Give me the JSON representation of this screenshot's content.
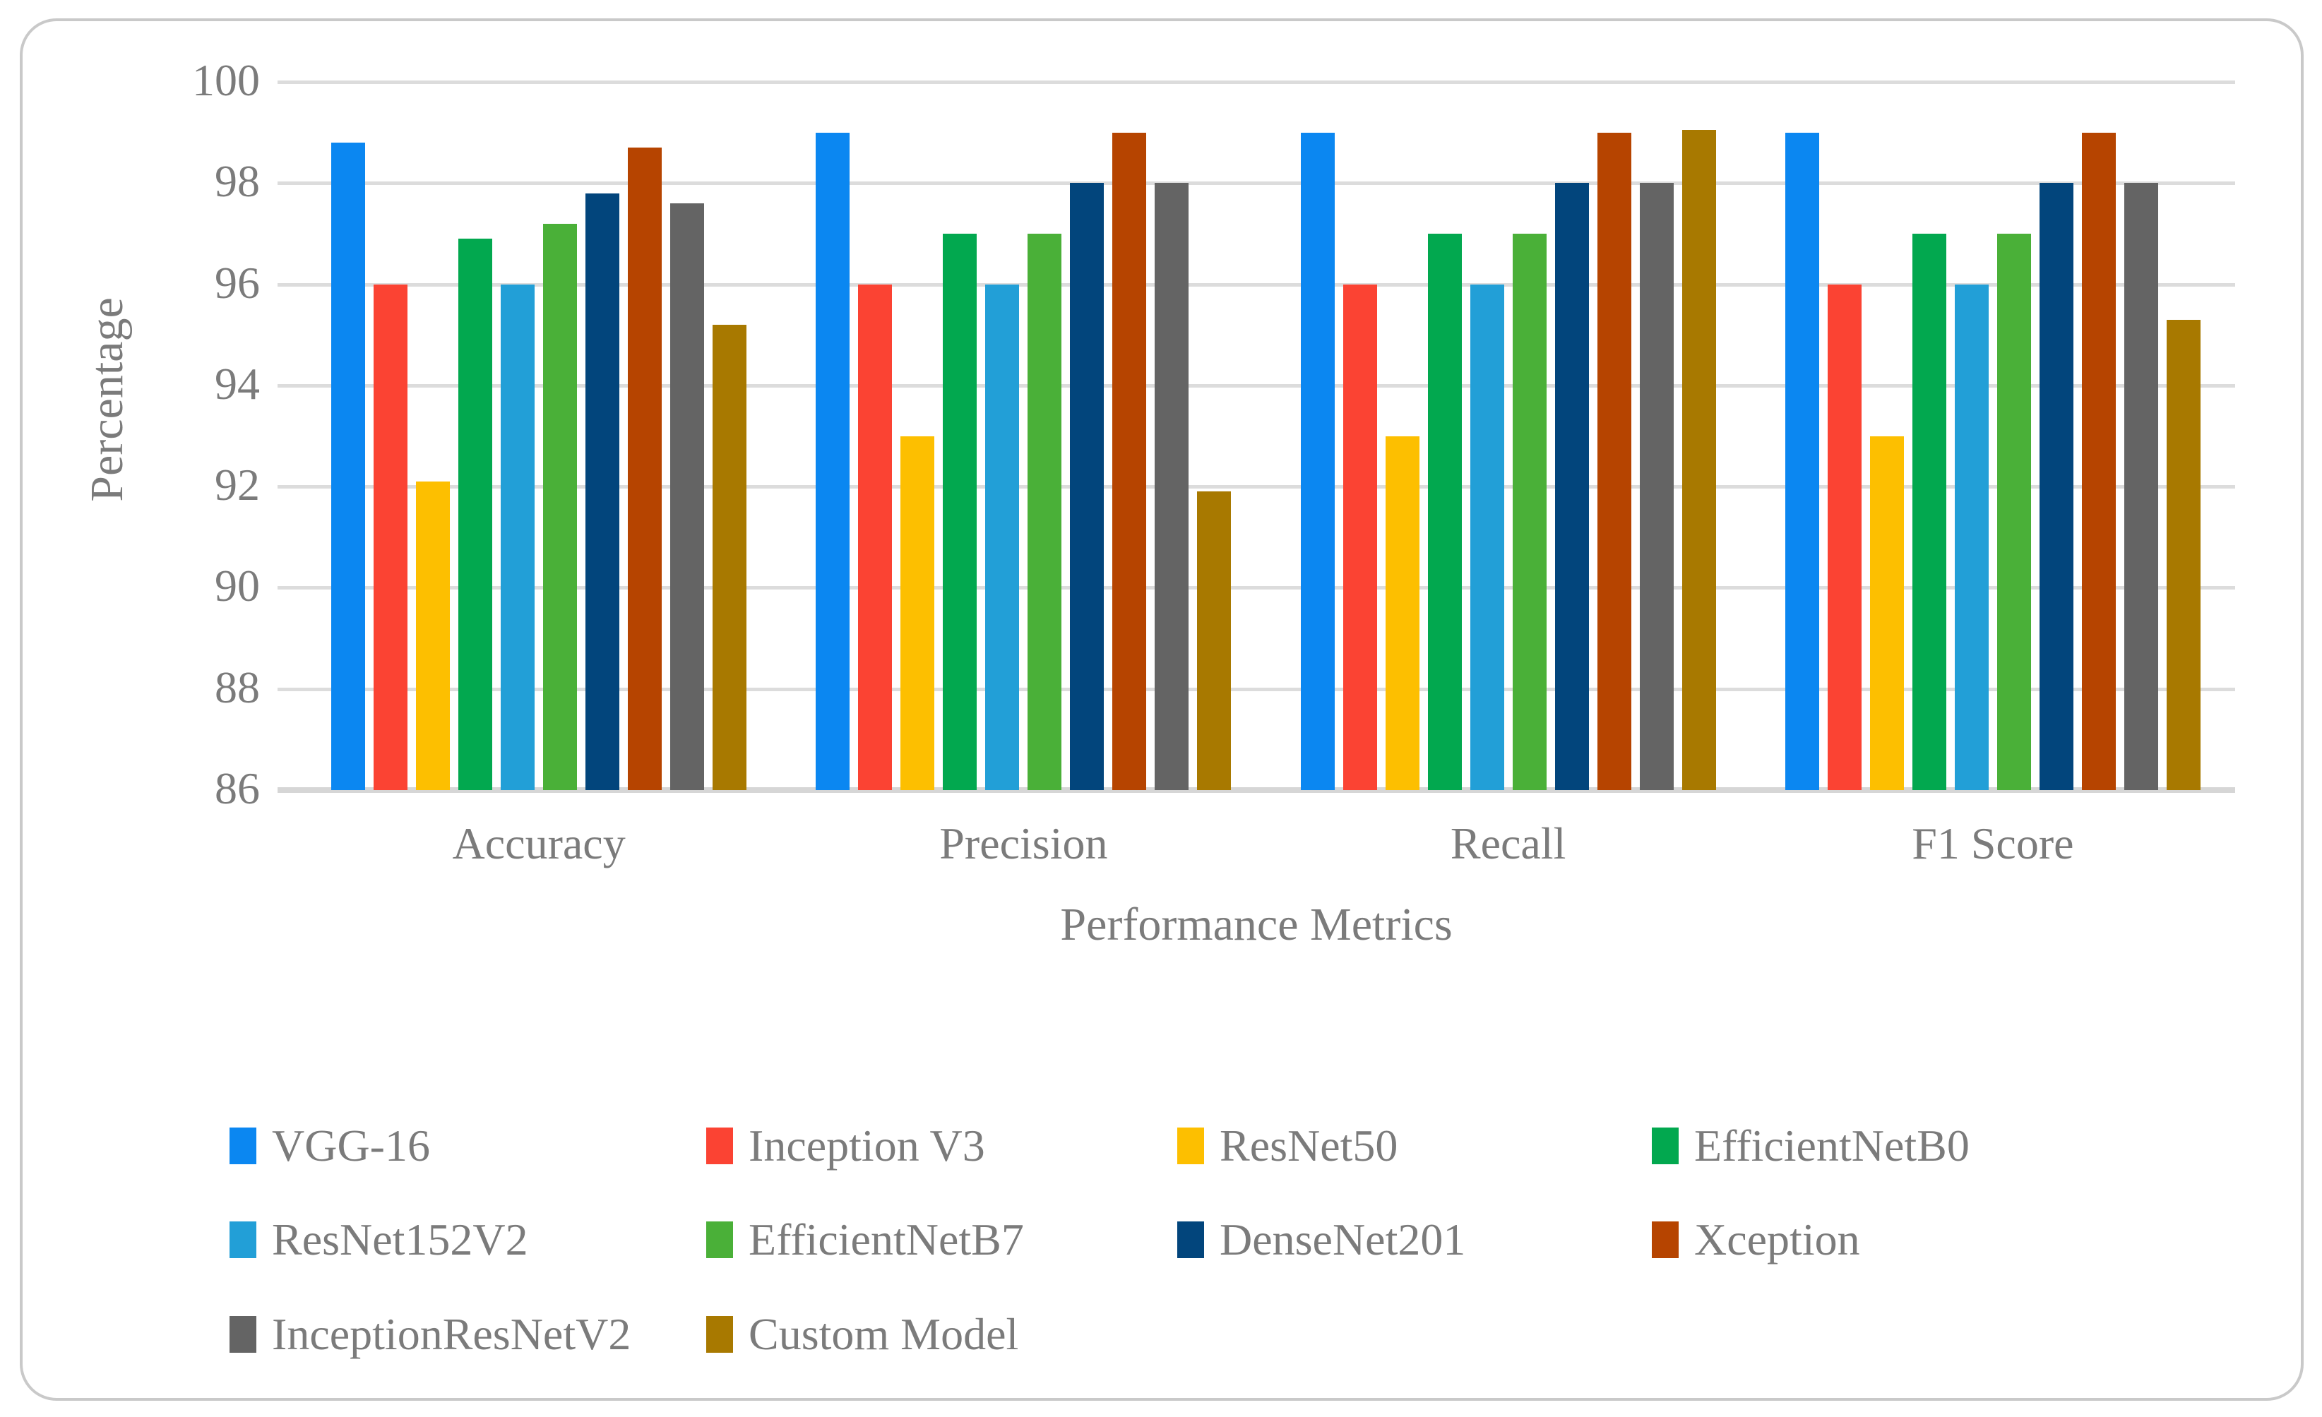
{
  "chart_data": {
    "type": "bar",
    "title": "",
    "xlabel": "Performance Metrics",
    "ylabel": "Percentage",
    "categories": [
      "Accuracy",
      "Precision",
      "Recall",
      "F1 Score"
    ],
    "ylim": [
      86,
      100
    ],
    "yticks": [
      100,
      98,
      96,
      94,
      92,
      90,
      88,
      86
    ],
    "grid": true,
    "legend_position": "bottom",
    "legend_rows": [
      [
        0,
        1,
        2,
        3
      ],
      [
        4,
        5,
        6,
        7
      ],
      [
        8,
        9
      ]
    ],
    "series": [
      {
        "name": "VGG-16",
        "color": "#0b87f1",
        "values": [
          98.8,
          99.0,
          99.0,
          99.0
        ]
      },
      {
        "name": "Inception V3",
        "color": "#fb4333",
        "values": [
          96.0,
          96.0,
          96.0,
          96.0
        ]
      },
      {
        "name": "ResNet50",
        "color": "#fdbf00",
        "values": [
          92.1,
          93.0,
          93.0,
          93.0
        ]
      },
      {
        "name": "EfficientNetB0",
        "color": "#02a84f",
        "values": [
          96.9,
          97.0,
          97.0,
          97.0
        ]
      },
      {
        "name": "ResNet152V2",
        "color": "#229fd7",
        "values": [
          96.0,
          96.0,
          96.0,
          96.0
        ]
      },
      {
        "name": "EfficientNetB7",
        "color": "#4ab038",
        "values": [
          97.2,
          97.0,
          97.0,
          97.0
        ]
      },
      {
        "name": "DenseNet201",
        "color": "#02457c",
        "values": [
          97.8,
          98.0,
          98.0,
          98.0
        ]
      },
      {
        "name": "Xception",
        "color": "#b64400",
        "values": [
          98.7,
          99.0,
          99.0,
          99.0
        ]
      },
      {
        "name": "InceptionResNetV2",
        "color": "#646464",
        "values": [
          97.6,
          98.0,
          98.0,
          98.0
        ]
      },
      {
        "name": "Custom Model",
        "color": "#a87900",
        "values": [
          95.2,
          91.9,
          99.05,
          95.3
        ]
      }
    ],
    "grid_color": "#dcdcdc",
    "text_color": "#7b7b7b"
  }
}
